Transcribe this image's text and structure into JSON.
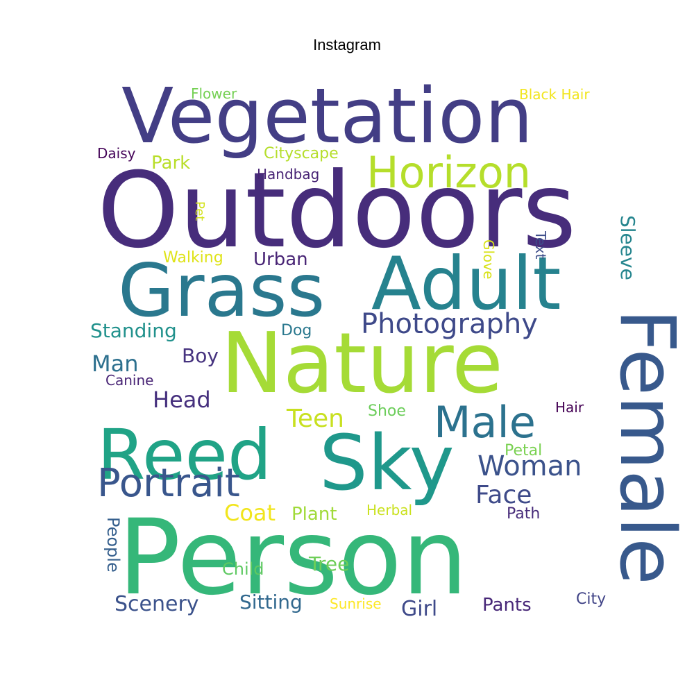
{
  "title": "Instagram",
  "words": [
    {
      "text": "Outdoors",
      "color": "#472d7b"
    },
    {
      "text": "Vegetation",
      "color": "#433e85"
    },
    {
      "text": "Person",
      "color": "#35b779"
    },
    {
      "text": "Nature",
      "color": "#a5db36"
    },
    {
      "text": "Sky",
      "color": "#1f988b"
    },
    {
      "text": "Grass",
      "color": "#2a788e"
    },
    {
      "text": "Adult",
      "color": "#26828e"
    },
    {
      "text": "Female",
      "color": "#38598c"
    },
    {
      "text": "Reed",
      "color": "#20a386"
    },
    {
      "text": "Horizon",
      "color": "#b5de2b"
    },
    {
      "text": "Male",
      "color": "#2c728e"
    },
    {
      "text": "Portrait",
      "color": "#39568c"
    },
    {
      "text": "Photography",
      "color": "#3e4989"
    },
    {
      "text": "Woman",
      "color": "#3b528b"
    },
    {
      "text": "Face",
      "color": "#3e4a89"
    },
    {
      "text": "Head",
      "color": "#46307e"
    },
    {
      "text": "Teen",
      "color": "#c8e020"
    },
    {
      "text": "Man",
      "color": "#2d708e"
    },
    {
      "text": "Standing",
      "color": "#21918c"
    },
    {
      "text": "Boy",
      "color": "#46337f"
    },
    {
      "text": "Urban",
      "color": "#482475"
    },
    {
      "text": "Sleeve",
      "color": "#25858e"
    },
    {
      "text": "Scenery",
      "color": "#3b528b"
    },
    {
      "text": "Sitting",
      "color": "#31688e"
    },
    {
      "text": "Girl",
      "color": "#3e4989"
    },
    {
      "text": "Pants",
      "color": "#482878"
    },
    {
      "text": "Tree",
      "color": "#6ece58"
    },
    {
      "text": "Child",
      "color": "#5ec962"
    },
    {
      "text": "Plant",
      "color": "#a0da39"
    },
    {
      "text": "Coat",
      "color": "#f1e51d"
    },
    {
      "text": "People",
      "color": "#355f8d"
    },
    {
      "text": "City",
      "color": "#414487"
    },
    {
      "text": "Path",
      "color": "#472c7a"
    },
    {
      "text": "Herbal",
      "color": "#cae11f"
    },
    {
      "text": "Petal",
      "color": "#7ad151"
    },
    {
      "text": "Shoe",
      "color": "#6ccd5a"
    },
    {
      "text": "Hair",
      "color": "#440154"
    },
    {
      "text": "Canine",
      "color": "#482475"
    },
    {
      "text": "Dog",
      "color": "#2a788e"
    },
    {
      "text": "Walking",
      "color": "#dfe318"
    },
    {
      "text": "Glove",
      "color": "#d8e219"
    },
    {
      "text": "Text",
      "color": "#3d4d8a"
    },
    {
      "text": "Pet",
      "color": "#d2e21b"
    },
    {
      "text": "Handbag",
      "color": "#482475"
    },
    {
      "text": "Park",
      "color": "#b8de29"
    },
    {
      "text": "Daisy",
      "color": "#450559"
    },
    {
      "text": "Cityscape",
      "color": "#b5de2b"
    },
    {
      "text": "Flower",
      "color": "#75d054"
    },
    {
      "text": "Black Hair",
      "color": "#f1e51d"
    },
    {
      "text": "Sunrise",
      "color": "#fde725"
    }
  ]
}
